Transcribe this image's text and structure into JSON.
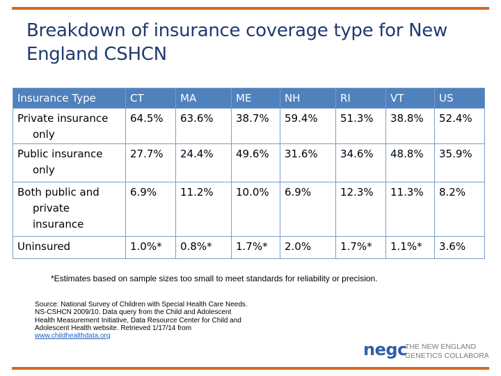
{
  "colors": {
    "accent_rule": "#d2691e",
    "title": "#1f3a6e",
    "header_bg": "#4f81bd",
    "logo_text": "#7a7a7a",
    "logo_mark": "#2f5fa8"
  },
  "title": "Breakdown of insurance coverage type for New England CSHCN",
  "table": {
    "headers": [
      "Insurance Type",
      "CT",
      "MA",
      "ME",
      "NH",
      "RI",
      "VT",
      "US"
    ],
    "rows": [
      {
        "label_lines": [
          "Private insurance",
          "only"
        ],
        "values": [
          "64.5%",
          "63.6%",
          "38.7%",
          "59.4%",
          "51.3%",
          "38.8%",
          "52.4%"
        ]
      },
      {
        "label_lines": [
          "Public insurance",
          "only"
        ],
        "values": [
          "27.7%",
          "24.4%",
          "49.6%",
          "31.6%",
          "34.6%",
          "48.8%",
          "35.9%"
        ]
      },
      {
        "label_lines": [
          "Both public and",
          "private",
          "insurance"
        ],
        "values": [
          "6.9%",
          "11.2%",
          "10.0%",
          "6.9%",
          "12.3%",
          "11.3%",
          "8.2%"
        ]
      },
      {
        "label_lines": [
          "Uninsured"
        ],
        "values": [
          "1.0%*",
          "0.8%*",
          "1.7%*",
          "2.0%",
          "1.7%*",
          "1.1%*",
          "3.6%"
        ]
      }
    ]
  },
  "footnote": "*Estimates based on sample sizes too small to meet standards for reliability or precision.",
  "source": {
    "lines": [
      "Source: National Survey of Children with Special Health Care Needs.",
      "NS-CSHCN 2009/10. Data query from the Child and Adolescent",
      "Health Measurement Initiative, Data Resource Center for Child and",
      "Adolescent Health website. Retrieved 1/17/14  from"
    ],
    "link": "www.childhealthdata.org"
  },
  "logo": {
    "mark": "negc",
    "line1": "THE NEW ENGLAND",
    "line2": "GENETICS COLLABORATIVE"
  }
}
